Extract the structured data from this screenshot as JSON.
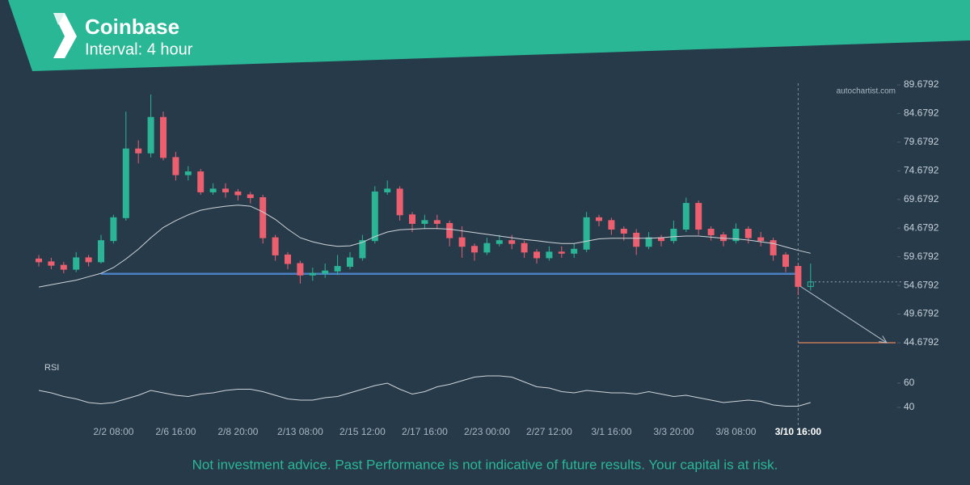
{
  "chart_data": {
    "type": "candlestick",
    "title": "Coinbase",
    "subtitle": "Interval: 4 hour",
    "watermark": "autochartist.com",
    "categories": [
      null,
      null,
      null,
      null,
      null,
      null,
      "2/2 08:00",
      null,
      null,
      null,
      null,
      "2/6 16:00",
      null,
      null,
      null,
      null,
      "2/8 20:00",
      null,
      null,
      null,
      null,
      "2/13 08:00",
      null,
      null,
      null,
      null,
      "2/15 12:00",
      null,
      null,
      null,
      null,
      "2/17 16:00",
      null,
      null,
      null,
      null,
      "2/23 00:00",
      null,
      null,
      null,
      null,
      "2/27 12:00",
      null,
      null,
      null,
      null,
      "3/1 16:00",
      null,
      null,
      null,
      null,
      "3/3 20:00",
      null,
      null,
      null,
      null,
      "3/8 08:00",
      null,
      null,
      null,
      null,
      "3/10 16:00",
      null
    ],
    "open": [
      59.3,
      58.8,
      58.2,
      57.5,
      59.5,
      58.8,
      62.5,
      66.5,
      78.5,
      77.8,
      84,
      77,
      74,
      74.5,
      71,
      71.5,
      71,
      70.5,
      70,
      63,
      60,
      58.5,
      56.5,
      56.8,
      57.2,
      58,
      59.5,
      62.5,
      71,
      71.5,
      67,
      65.5,
      66,
      65.5,
      63,
      61.5,
      60.5,
      62,
      62.5,
      62,
      60.5,
      59.5,
      60.5,
      60.3,
      61,
      66.5,
      66,
      64.5,
      63.8,
      61.5,
      63,
      62.5,
      64.5,
      69,
      64.5,
      63.5,
      62.5,
      64.5,
      63,
      62.5,
      60,
      58,
      54.5
    ],
    "high": [
      60,
      59.5,
      58.8,
      60.5,
      60,
      63.5,
      67,
      85,
      80,
      88,
      85,
      78,
      75.5,
      75,
      72.5,
      72.5,
      71.5,
      71,
      70.5,
      63.5,
      60.5,
      59,
      57.8,
      58.5,
      60,
      60.5,
      63.5,
      72,
      73,
      72,
      67.5,
      67,
      67,
      66,
      65,
      62,
      63,
      63.5,
      63.5,
      62.5,
      61,
      61.5,
      61.5,
      62,
      67.5,
      67,
      66.5,
      65,
      64.5,
      64,
      63.5,
      66,
      70,
      69.5,
      65,
      64,
      65.5,
      65,
      64,
      63,
      60.5,
      58.5,
      58.5
    ],
    "low": [
      58,
      57.5,
      56.8,
      57,
      58,
      58.5,
      62,
      66,
      76,
      77,
      76.5,
      73,
      73,
      70.5,
      70.5,
      70,
      69.5,
      69,
      62,
      59,
      57.5,
      55,
      55.5,
      56,
      56.5,
      57.5,
      59,
      62,
      70.5,
      66,
      64,
      64.5,
      64.5,
      61.5,
      59.5,
      59,
      60,
      61.5,
      61,
      59.5,
      58.5,
      59,
      59.5,
      59.5,
      60.5,
      65,
      63.5,
      62.5,
      60,
      61,
      61.5,
      62,
      64,
      63.5,
      62.5,
      61.5,
      62,
      62,
      61.5,
      59,
      57,
      53,
      53.8
    ],
    "close": [
      58.8,
      58.2,
      57.5,
      59.5,
      58.8,
      62.5,
      66.5,
      78.5,
      77.8,
      84,
      77,
      74,
      74.5,
      71,
      71.5,
      71,
      70.5,
      70,
      63,
      60,
      58.5,
      56.5,
      56.8,
      57.2,
      58,
      59.5,
      62.5,
      71,
      71.5,
      67,
      65.5,
      66,
      65.5,
      63,
      61.5,
      60.5,
      62,
      62.5,
      62,
      60.5,
      59.5,
      60.5,
      60.3,
      61,
      66.5,
      66,
      64.5,
      63.8,
      61.5,
      63,
      62.5,
      64.5,
      69,
      64.5,
      63.5,
      62.5,
      64.5,
      63,
      62.5,
      60,
      58,
      54.5,
      55.3
    ],
    "up_color": "#2bb596",
    "down_color": "#ec5f6f",
    "ylim": [
      42.6792,
      91.6792
    ],
    "yticks": [
      89.6792,
      84.6792,
      79.6792,
      74.6792,
      69.6792,
      64.6792,
      59.6792,
      54.6792,
      49.6792,
      44.6792
    ],
    "moving_average": {
      "color": "#d0d4d8",
      "values": [
        54.4,
        54.8,
        55.2,
        55.6,
        56.2,
        56.8,
        57.8,
        59.3,
        61,
        63,
        64.8,
        66,
        67,
        67.8,
        68.2,
        68.5,
        68.7,
        68.5,
        67.5,
        66.2,
        64.5,
        63,
        62.3,
        61.8,
        61.5,
        61.6,
        62.2,
        63.2,
        64,
        64.4,
        64.5,
        64.6,
        64.6,
        64.5,
        64.2,
        63.9,
        63.6,
        63.3,
        63,
        62.7,
        62.5,
        62.2,
        62,
        62,
        62.4,
        62.8,
        62.9,
        62.9,
        62.9,
        62.9,
        63,
        63.2,
        63.3,
        63.3,
        63.1,
        62.9,
        62.8,
        62.6,
        62.3,
        62,
        61.4,
        60.8,
        60.3
      ]
    },
    "support_level": 56.7,
    "support_color": "#4a7fc1",
    "target": 44.6792,
    "target_color": "#e8835a",
    "rsi": {
      "label": "RSI",
      "color": "#d0d4d8",
      "ylim": [
        26,
        72
      ],
      "yticks": [
        60,
        40
      ],
      "values": [
        54,
        52,
        49,
        47,
        44,
        43,
        44,
        47,
        50,
        54,
        52,
        50,
        49,
        51,
        52,
        54,
        55,
        55,
        53,
        50,
        47,
        46,
        46,
        48,
        49,
        52,
        55,
        58,
        60,
        55,
        51,
        53,
        57,
        59,
        62,
        65,
        66,
        66,
        65,
        61,
        57,
        56,
        53,
        52,
        54,
        53,
        52,
        52,
        51,
        53,
        51,
        49,
        50,
        48,
        46,
        44,
        45,
        46,
        45,
        42,
        41,
        41,
        44
      ]
    }
  },
  "footer": "Not investment advice. Past Performance is not indicative of future results. Your capital is at risk."
}
